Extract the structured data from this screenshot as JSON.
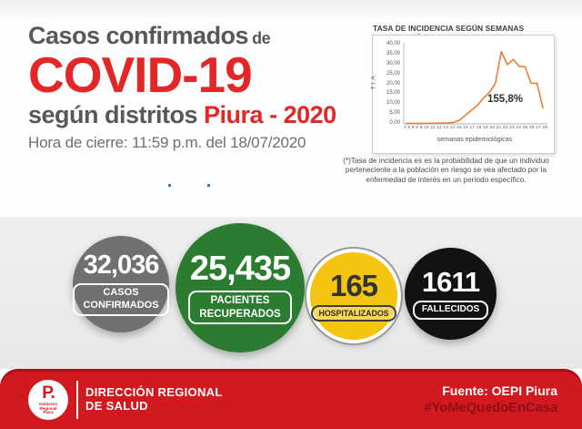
{
  "header": {
    "title_prefix": "Casos confirmados",
    "title_prefix_small": "de",
    "title_main": "COVID-19",
    "title_sub_gray": "según distritos",
    "title_sub_red": "Piura - 2020",
    "closing_time": "Hora de cierre: 11:59 p.m. del 18/07/2020",
    "accent_red": "#E32726",
    "text_gray": "#57585A"
  },
  "chart_data": {
    "type": "line",
    "title": "TASA DE INCIDENCIA SEGÚN SEMANAS EPIDEMIOLÓGICAS",
    "xlabel": "semanas epidemiológicas",
    "ylabel": "T.I.A",
    "x_labels": [
      "3",
      "5",
      "6",
      "8",
      "9",
      "10",
      "11",
      "12",
      "13",
      "14",
      "15",
      "16",
      "17",
      "18",
      "19",
      "20",
      "21",
      "22",
      "23",
      "24",
      "25",
      "26",
      "27",
      "28"
    ],
    "values": [
      0.2,
      0.2,
      0.2,
      0.2,
      0.3,
      0.3,
      0.4,
      0.5,
      0.8,
      2,
      4.5,
      7,
      9.5,
      13,
      16,
      20.5,
      36.5,
      30,
      32.5,
      29,
      28.8,
      20.5,
      20.5,
      8
    ],
    "ylim": [
      0,
      40
    ],
    "ytick_step": 5,
    "yticks": [
      "0,00",
      "5,00",
      "10,00",
      "15,00",
      "20,00",
      "25,00",
      "30,00",
      "35,00",
      "40,00"
    ],
    "annotation": "155,8%",
    "line_color": "#ED7D31",
    "grid": false,
    "legend": "none"
  },
  "footnote": "(*)Tasa de incidencia es es la probabilidad de que un individuo perteneciente a la población en riesgo se vea afectado por la enfermedad de interés en un período específico.",
  "stats": [
    {
      "value": "32,036",
      "label_lines": [
        "CASOS",
        "CONFIRMADOS"
      ],
      "color": "#6F7071",
      "text_color": "#FFFFFF"
    },
    {
      "value": "25,435",
      "label_lines": [
        "PACIENTES",
        "RECUPERADOS"
      ],
      "color": "#2B7B31",
      "text_color": "#FFFFFF"
    },
    {
      "value": "165",
      "label_lines": [
        "HOSPITALIZADOS"
      ],
      "color": "#F5C411",
      "text_color": "#333333"
    },
    {
      "value": "1611",
      "label_lines": [
        "FALLECIDOS"
      ],
      "color": "#121212",
      "text_color": "#FFFFFF"
    }
  ],
  "footer": {
    "logo_monogram": "P.",
    "logo_subtext": "Gobierno Regional Piura",
    "org_name_line1": "DIRECCIÓN REGIONAL",
    "org_name_line2": "DE SALUD",
    "source": "Fuente: OEPI Piura",
    "hashtag": "#YoMeQuedoEnCasa",
    "bar_color": "#D2191F",
    "hashtag_color": "#8E1117"
  }
}
